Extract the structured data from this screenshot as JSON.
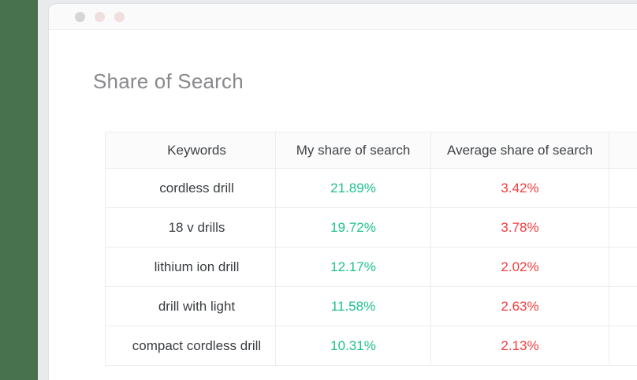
{
  "page": {
    "title": "Share of Search"
  },
  "window_controls": {
    "dot_colors": [
      "#d6d6d6",
      "#f1dfdf",
      "#f1dfdf"
    ]
  },
  "colors": {
    "accent_strip": "#48714e",
    "positive_value": "#1ec28e",
    "negative_value": "#f23e3e"
  },
  "table": {
    "columns": [
      "Keywords",
      "My share of search",
      "Average share of search",
      ""
    ],
    "rows": [
      {
        "keyword": "cordless drill",
        "my_share": "21.89%",
        "avg_share": "3.42%"
      },
      {
        "keyword": "18 v drills",
        "my_share": "19.72%",
        "avg_share": "3.78%"
      },
      {
        "keyword": "lithium ion drill",
        "my_share": "12.17%",
        "avg_share": "2.02%"
      },
      {
        "keyword": "drill with light",
        "my_share": "11.58%",
        "avg_share": "2.63%"
      },
      {
        "keyword": "compact cordless drill",
        "my_share": "10.31%",
        "avg_share": "2.13%"
      }
    ]
  }
}
